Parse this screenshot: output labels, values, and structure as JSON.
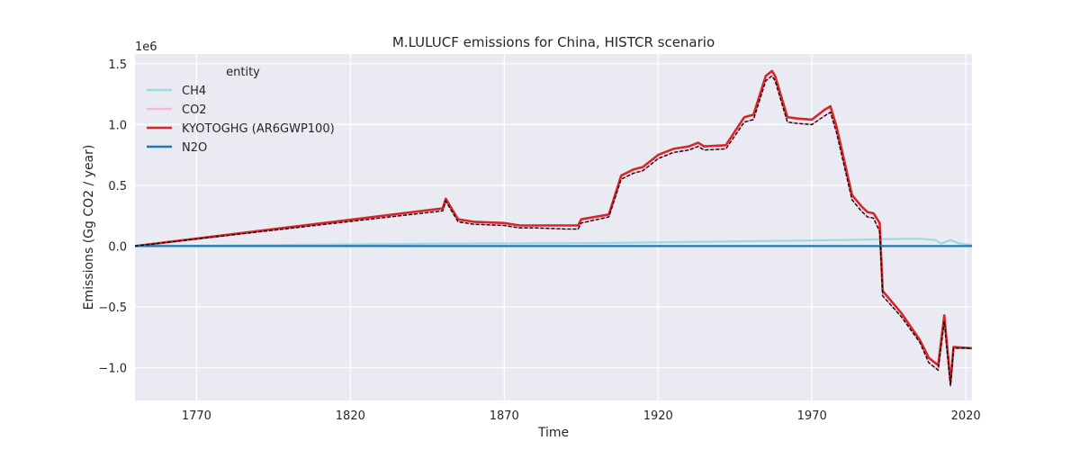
{
  "chart_data": {
    "type": "line",
    "title": "M.LULUCF emissions for China, HISTCR scenario",
    "xlabel": "Time",
    "ylabel": "Emissions (Gg CO2 / year)",
    "y_multiplier": "1e6",
    "xlim": [
      1750,
      2022
    ],
    "ylim": [
      -1.27,
      1.58
    ],
    "xticks": [
      1770,
      1820,
      1870,
      1920,
      1970,
      2020
    ],
    "yticks": [
      -1.0,
      -0.5,
      0.0,
      0.5,
      1.0,
      1.5
    ],
    "ytick_labels": [
      "−1.0",
      "−0.5",
      "0.0",
      "0.5",
      "1.0",
      "1.5"
    ],
    "grid": true,
    "legend": {
      "title": "entity",
      "position": "top-left"
    },
    "series": [
      {
        "name": "CH4",
        "color": "#9edae5",
        "x": [
          1750,
          1800,
          1850,
          1900,
          1950,
          1980,
          1990,
          2000,
          2005,
          2010,
          2012,
          2015,
          2018,
          2022
        ],
        "y": [
          0.0,
          0.01,
          0.02,
          0.025,
          0.04,
          0.05,
          0.055,
          0.06,
          0.06,
          0.05,
          0.02,
          0.05,
          0.02,
          0.01
        ]
      },
      {
        "name": "CO2",
        "color": "#f7b6d2",
        "x": [
          1750,
          1850,
          1851,
          1855,
          1860,
          1870,
          1875,
          1880,
          1890,
          1894,
          1895,
          1904,
          1908,
          1912,
          1915,
          1920,
          1925,
          1930,
          1933,
          1935,
          1942,
          1948,
          1951,
          1955,
          1957,
          1958,
          1962,
          1965,
          1970,
          1974,
          1976,
          1978,
          1983,
          1986,
          1988,
          1990,
          1992,
          1993,
          1999,
          2005,
          2008,
          2011,
          2013,
          2015,
          2016,
          2022
        ],
        "y": [
          0.0,
          0.29,
          0.37,
          0.2,
          0.18,
          0.17,
          0.15,
          0.15,
          0.14,
          0.14,
          0.19,
          0.24,
          0.55,
          0.6,
          0.62,
          0.72,
          0.77,
          0.79,
          0.82,
          0.79,
          0.8,
          1.02,
          1.04,
          1.36,
          1.4,
          1.36,
          1.02,
          1.01,
          1.0,
          1.07,
          1.1,
          0.93,
          0.38,
          0.29,
          0.24,
          0.23,
          0.12,
          -0.41,
          -0.58,
          -0.79,
          -0.96,
          -1.02,
          -0.62,
          -1.15,
          -0.84,
          -0.84
        ]
      },
      {
        "name": "KYOTOGHG (AR6GWP100)",
        "color": "#d62728",
        "x": [
          1750,
          1850,
          1851,
          1855,
          1860,
          1870,
          1875,
          1880,
          1890,
          1894,
          1895,
          1904,
          1908,
          1912,
          1915,
          1920,
          1925,
          1930,
          1933,
          1935,
          1942,
          1948,
          1951,
          1955,
          1957,
          1958,
          1962,
          1965,
          1970,
          1974,
          1976,
          1978,
          1983,
          1986,
          1988,
          1990,
          1992,
          1993,
          1999,
          2005,
          2008,
          2011,
          2013,
          2015,
          2016,
          2022
        ],
        "y": [
          0.0,
          0.31,
          0.39,
          0.22,
          0.2,
          0.19,
          0.17,
          0.17,
          0.17,
          0.17,
          0.22,
          0.26,
          0.58,
          0.63,
          0.65,
          0.75,
          0.8,
          0.82,
          0.85,
          0.82,
          0.83,
          1.06,
          1.08,
          1.4,
          1.44,
          1.4,
          1.06,
          1.05,
          1.04,
          1.12,
          1.15,
          0.98,
          0.42,
          0.33,
          0.28,
          0.27,
          0.19,
          -0.37,
          -0.55,
          -0.77,
          -0.92,
          -0.98,
          -0.57,
          -1.12,
          -0.83,
          -0.84
        ]
      },
      {
        "name": "N2O",
        "color": "#1f77b4",
        "x": [
          1750,
          2022
        ],
        "y": [
          0.0,
          0.0
        ]
      }
    ],
    "reference_line": {
      "style": "dashed",
      "color": "#000000",
      "x": [
        1750,
        1850,
        1851,
        1855,
        1860,
        1870,
        1875,
        1880,
        1890,
        1894,
        1895,
        1904,
        1908,
        1912,
        1915,
        1920,
        1925,
        1930,
        1933,
        1935,
        1942,
        1948,
        1951,
        1955,
        1957,
        1958,
        1962,
        1965,
        1970,
        1974,
        1976,
        1978,
        1983,
        1986,
        1988,
        1990,
        1992,
        1993,
        1999,
        2005,
        2008,
        2011,
        2013,
        2015,
        2016,
        2022
      ],
      "y": [
        0.0,
        0.29,
        0.37,
        0.2,
        0.18,
        0.17,
        0.15,
        0.15,
        0.14,
        0.14,
        0.19,
        0.24,
        0.55,
        0.6,
        0.62,
        0.72,
        0.77,
        0.79,
        0.82,
        0.79,
        0.8,
        1.02,
        1.04,
        1.36,
        1.4,
        1.36,
        1.02,
        1.01,
        1.0,
        1.07,
        1.1,
        0.93,
        0.38,
        0.29,
        0.24,
        0.23,
        0.12,
        -0.41,
        -0.58,
        -0.79,
        -0.96,
        -1.02,
        -0.62,
        -1.15,
        -0.84,
        -0.84
      ]
    }
  }
}
